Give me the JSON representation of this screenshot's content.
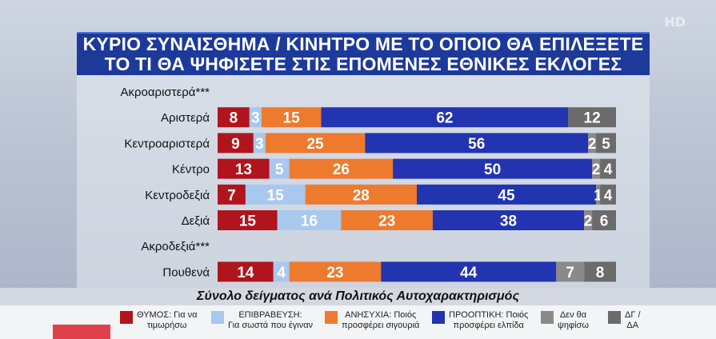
{
  "title": {
    "line1": "ΚΥΡΙΟ ΣΥΝΑΙΣΘΗΜΑ / ΚΙΝΗΤΡΟ ΜΕ ΤΟ ΟΠΟΙΟ ΘΑ ΕΠΙΛΕΞΕΤΕ",
    "line2": "ΤΟ ΤΙ ΘΑ ΨΗΦΙΣΕΤΕ ΣΤΙΣ ΕΠΟΜΕΝΕΣ ΕΘΝΙΚΕΣ ΕΚΛΟΓΕΣ"
  },
  "watermark": "HD",
  "subtitle": "Σύνολο δείγματος ανά Πολιτικός Αυτοχαρακτηρισμός",
  "legend": [
    {
      "color": "#b0141c",
      "line1": "ΘΥΜΟΣ: Για να",
      "line2": "τιμωρήσω"
    },
    {
      "color": "#a8c8ee",
      "line1": "ΕΠΙΒΡΑΒΕΥΣΗ:",
      "line2": "Για σωστά που έγιναν"
    },
    {
      "color": "#ee7a2e",
      "line1": "ΑΝΗΣΥΧΙΑ: Ποιός",
      "line2": "προσφέρει σιγουριά"
    },
    {
      "color": "#2234b0",
      "line1": "ΠΡΟΟΠΤΙΚΗ: Ποιός",
      "line2": "προσφέρει ελπίδα"
    },
    {
      "color": "#8a8a8a",
      "line1": "Δεν θα",
      "line2": "ψηφίσω"
    },
    {
      "color": "#6b6b6b",
      "line1": "ΔΓ /",
      "line2": "ΔΑ"
    }
  ],
  "chart_data": {
    "type": "bar",
    "stacked": true,
    "orientation": "horizontal",
    "categories": [
      "Ακροαριστερά***",
      "Αριστερά",
      "Κεντροαριστερά",
      "Κέντρο",
      "Κεντροδεξιά",
      "Δεξιά",
      "Ακροδεξιά***",
      "Πουθενά"
    ],
    "series": [
      {
        "name": "ΘΥΜΟΣ: Για να τιμωρήσω",
        "color": "#b0141c",
        "values": [
          null,
          8,
          9,
          13,
          7,
          15,
          null,
          14
        ]
      },
      {
        "name": "ΕΠΙΒΡΑΒΕΥΣΗ: Για σωστά που έγιναν",
        "color": "#a8c8ee",
        "values": [
          null,
          3,
          3,
          5,
          15,
          16,
          null,
          4
        ]
      },
      {
        "name": "ΑΝΗΣΥΧΙΑ: Ποιός προσφέρει σιγουριά",
        "color": "#ee7a2e",
        "values": [
          null,
          15,
          25,
          26,
          28,
          23,
          null,
          23
        ]
      },
      {
        "name": "ΠΡΟΟΠΤΙΚΗ: Ποιός προσφέρει ελπίδα",
        "color": "#2234b0",
        "values": [
          null,
          62,
          56,
          50,
          45,
          38,
          null,
          44
        ]
      },
      {
        "name": "Δεν θα ψηφίσω",
        "color": "#8a8a8a",
        "values": [
          null,
          0,
          2,
          2,
          1,
          2,
          null,
          7
        ]
      },
      {
        "name": "ΔΓ / ΔΑ",
        "color": "#6b6b6b",
        "values": [
          null,
          12,
          5,
          4,
          4,
          6,
          null,
          8
        ]
      }
    ],
    "labels": [
      null,
      [
        "8",
        "3",
        "15",
        "62",
        "",
        "12"
      ],
      [
        "9",
        "3",
        "25",
        "56",
        "2",
        "5"
      ],
      [
        "13",
        "5",
        "26",
        "50",
        "2",
        "4"
      ],
      [
        "7",
        "15",
        "28",
        "45",
        "1",
        "4"
      ],
      [
        "15",
        "16",
        "23",
        "38",
        "2",
        "6"
      ],
      null,
      [
        "14",
        "4",
        "23",
        "44",
        "7",
        "8"
      ]
    ],
    "xlim": [
      0,
      100
    ]
  }
}
